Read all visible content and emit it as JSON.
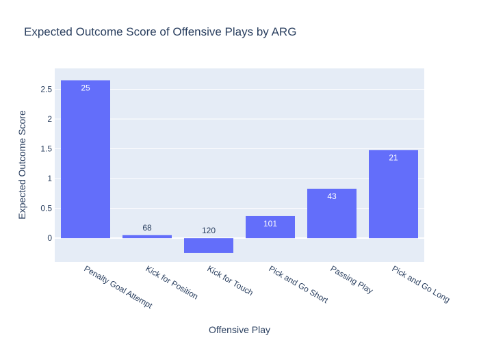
{
  "chart_data": {
    "type": "bar",
    "title": "Expected Outcome Score of Offensive Plays by ARG",
    "xlabel": "Offensive Play",
    "ylabel": "Expected Outcome Score",
    "categories": [
      "Penalty Goal Attempt",
      "Kick for Position",
      "Kick for Touch",
      "Pick and Go Short",
      "Passing Play",
      "Pick and Go Long"
    ],
    "values": [
      2.65,
      0.05,
      -0.25,
      0.37,
      0.83,
      1.48
    ],
    "bar_labels": [
      "25",
      "68",
      "120",
      "101",
      "43",
      "21"
    ],
    "ylim": [
      -0.4,
      2.85
    ],
    "y_ticks": [
      0,
      0.5,
      1,
      1.5,
      2,
      2.5
    ],
    "y_tick_labels": [
      "0",
      "0.5",
      "1",
      "1.5",
      "2",
      "2.5"
    ],
    "grid": true,
    "legend": "none",
    "colors": {
      "bar": "#636efa",
      "plot_bg": "#e5ecf6",
      "grid": "#ffffff",
      "text": "#2a3f5f",
      "label_inside": "#ffffff"
    }
  }
}
